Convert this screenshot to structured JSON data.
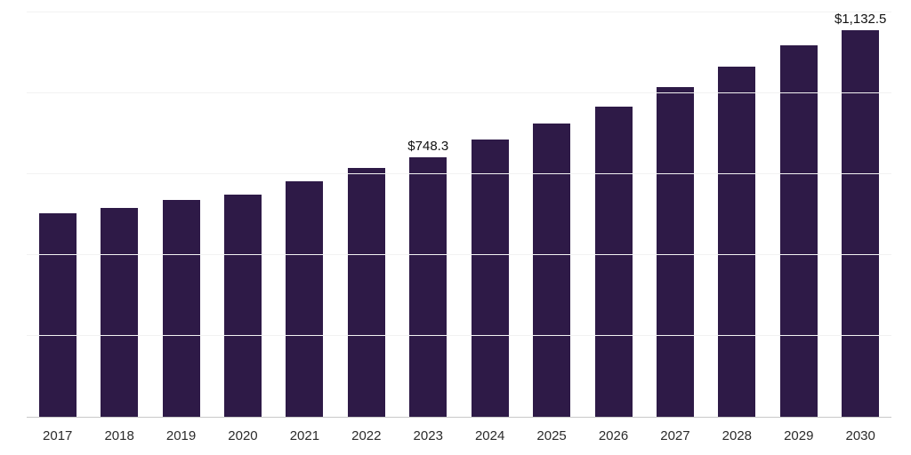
{
  "chart_data": {
    "type": "bar",
    "title": "",
    "xlabel": "",
    "ylabel": "",
    "categories": [
      "2017",
      "2018",
      "2019",
      "2020",
      "2021",
      "2022",
      "2023",
      "2024",
      "2025",
      "2026",
      "2027",
      "2028",
      "2029",
      "2030"
    ],
    "values": [
      586,
      602,
      626,
      640,
      679,
      716,
      748.3,
      800,
      845,
      894,
      951,
      1009,
      1071,
      1132.5
    ],
    "value_labels": {
      "2023": "$748.3",
      "2030": "$1,132.5"
    },
    "ylim": [
      0,
      1165
    ],
    "gridline_values": [
      233,
      466,
      699,
      932,
      1165
    ],
    "grid_on": true,
    "legend_position": "none",
    "bar_color": "#2e1a47",
    "grid_color": "#f2f2f2",
    "axis_color": "#c9c9c9",
    "tick_label_color": "#2b2b2b",
    "value_label_color": "#111111"
  }
}
